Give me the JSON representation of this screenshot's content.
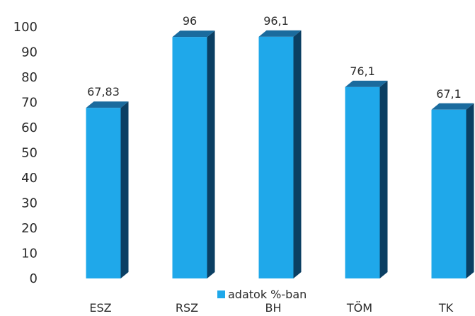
{
  "chart_data": {
    "type": "bar",
    "categories": [
      "ESZ",
      "RSZ",
      "BH",
      "TÖM",
      "TK"
    ],
    "series": [
      {
        "name": "adatok %-ban",
        "values": [
          67.83,
          96,
          96.1,
          76.1,
          67.1
        ],
        "labels": [
          "67,83",
          "96",
          "96,1",
          "76,1",
          "67,1"
        ]
      }
    ],
    "yticks": [
      "0",
      "10",
      "20",
      "30",
      "40",
      "50",
      "60",
      "70",
      "80",
      "90",
      "100"
    ],
    "ylim": [
      0,
      100
    ],
    "grid": false,
    "legend": "bottom-center",
    "style": "3d-columns"
  },
  "colors": {
    "bar_front": "#1fa8ea",
    "bar_side": "#0b3f63",
    "bar_top": "#1a6b9e",
    "legend_swatch": "#1fa8ea",
    "text": "#2b2b2b"
  }
}
